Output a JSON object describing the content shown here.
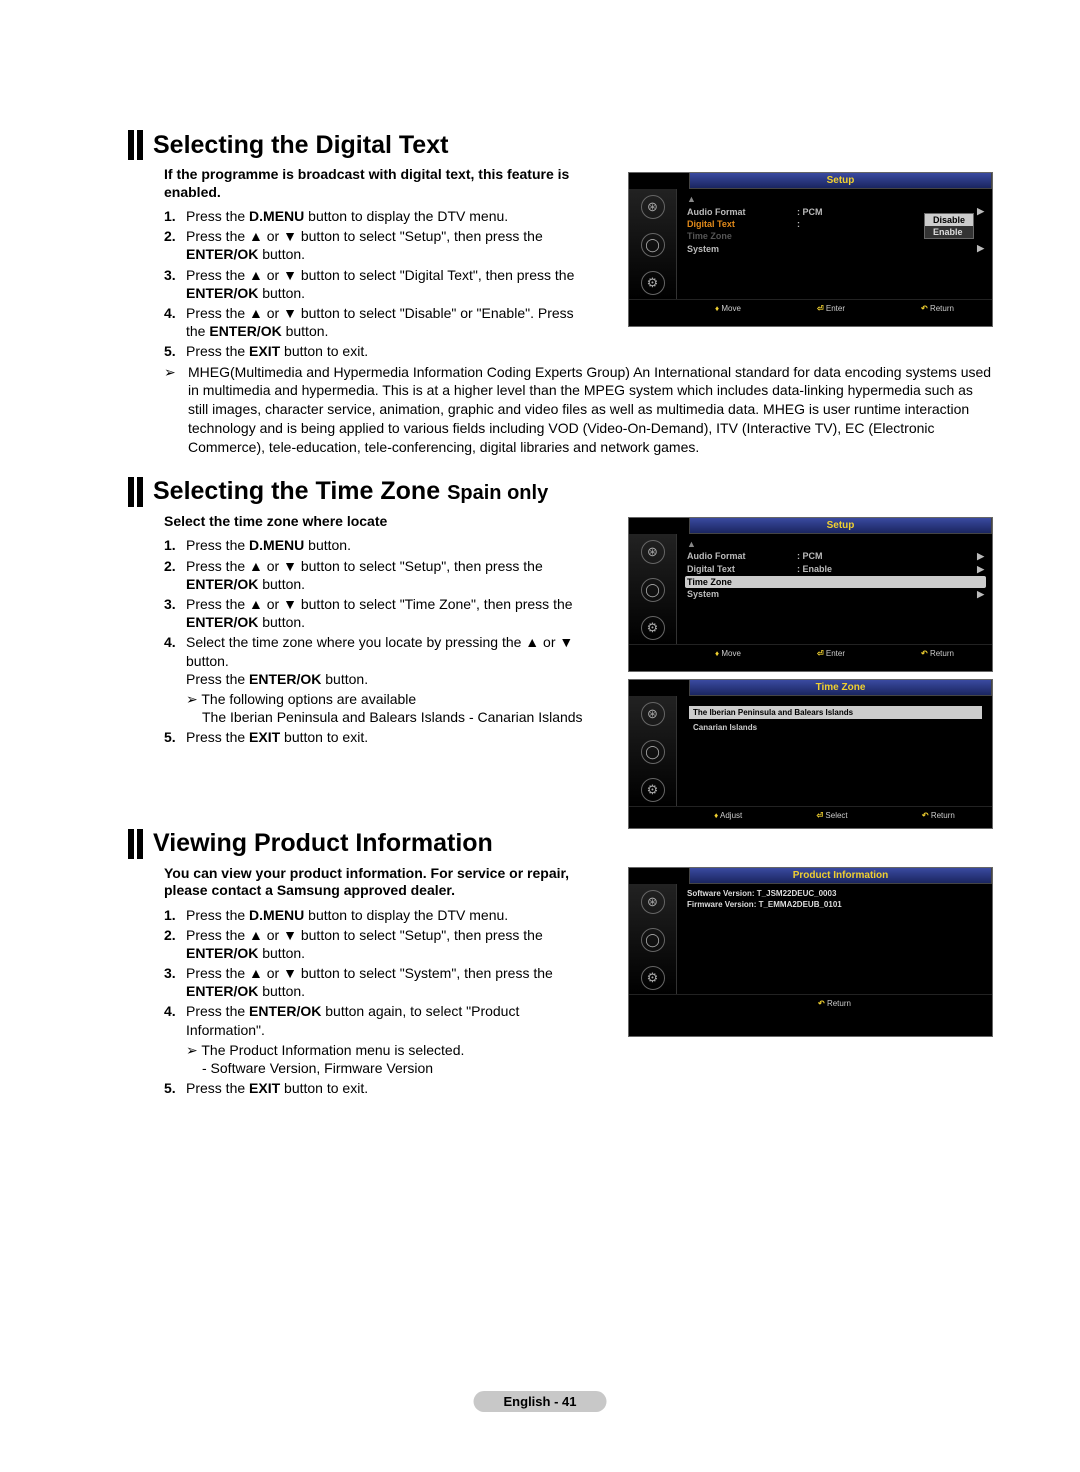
{
  "colors": {
    "text": "#000000",
    "osd_bg": "#000000",
    "osd_title_bg_top": "#3a4aa0",
    "osd_title_bg_bot": "#1a2560",
    "osd_title_text": "#f0d030",
    "highlight_bg": "#cccccc",
    "orange_text": "#e28a1a",
    "footer_bg": "#c8c8c8"
  },
  "section1": {
    "title": "Selecting the Digital Text",
    "intro": "If the programme is broadcast with digital text, this feature is enabled.",
    "steps": [
      "Press the <b>D.MENU</b> button to display the DTV menu.",
      "Press the ▲ or ▼ button to select \"Setup\", then press the <b>ENTER/OK</b> button.",
      "Press the ▲ or ▼ button to select \"Digital Text\", then press the <b>ENTER/OK</b> button.",
      "Press the ▲ or ▼ button to select \"Disable\" or \"Enable\". Press the <b>ENTER/OK</b> button.",
      "Press the <b>EXIT</b> button to exit."
    ],
    "note": "MHEG(Multimedia and Hypermedia Information Coding Experts Group) An International standard for data encoding systems used in multimedia and hypermedia. This is at a higher level than the MPEG system which includes data-linking hypermedia such as still images, character service, animation, graphic and video files as well as multimedia data. MHEG is user runtime interaction technology and is being applied to various fields including VOD (Video-On-Demand), ITV (Interactive TV), EC (Electronic Commerce), tele-education, tele-conferencing, digital libraries and network games.",
    "osd": {
      "title": "Setup",
      "rows": [
        {
          "label": "▲",
          "val": "",
          "type": "arrow"
        },
        {
          "label": "Audio Format",
          "val": ": PCM",
          "chev": "▶"
        },
        {
          "label": "Digital Text",
          "val": ":",
          "highlight": "orange"
        },
        {
          "label": "Time Zone",
          "val": "",
          "dim": true
        },
        {
          "label": "System",
          "val": "",
          "chev": "▶"
        }
      ],
      "popup": {
        "options": [
          "Disable",
          "Enable"
        ],
        "selected": 0
      },
      "footer": [
        "♦ Move",
        "⏎ Enter",
        "↶ Return"
      ]
    }
  },
  "section2": {
    "title": "Selecting the Time Zone",
    "subtitle": "Spain only",
    "intro": "Select the time zone where locate",
    "steps": [
      "Press the <b>D.MENU</b> button.",
      "Press the ▲ or ▼ button to select \"Setup\", then press the <b>ENTER/OK</b> button.",
      "Press the ▲ or ▼ button to select \"Time Zone\", then press the <b>ENTER/OK</b> button.",
      "Select the time zone where you locate by pressing the ▲ or ▼ button.<br>Press the <b>ENTER/OK</b> button.",
      "Press the <b>EXIT</b> button to exit."
    ],
    "sub_note_lead": "The following options are available",
    "sub_note_body": "The Iberian Peninsula and Balears Islands - Canarian Islands",
    "osd1": {
      "title": "Setup",
      "rows": [
        {
          "label": "▲",
          "val": "",
          "type": "arrow"
        },
        {
          "label": "Audio Format",
          "val": ": PCM",
          "chev": "▶"
        },
        {
          "label": "Digital Text",
          "val": ": Enable",
          "chev": "▶"
        },
        {
          "label": "Time Zone",
          "val": "",
          "highlight": "row"
        },
        {
          "label": "System",
          "val": "",
          "chev": "▶"
        }
      ],
      "footer": [
        "♦ Move",
        "⏎ Enter",
        "↶ Return"
      ]
    },
    "osd2": {
      "title": "Time Zone",
      "options": [
        "The Iberian Peninsula and Balears Islands",
        "Canarian Islands"
      ],
      "selected": 0,
      "footer": [
        "♦ Adjust",
        "⏎ Select",
        "↶ Return"
      ]
    }
  },
  "section3": {
    "title": "Viewing Product Information",
    "intro": "You can view your product information. For service or repair, please contact a Samsung approved dealer.",
    "steps": [
      "Press the <b>D.MENU</b> button to display the DTV menu.",
      "Press the ▲ or ▼ button to select \"Setup\", then press the <b>ENTER/OK</b> button.",
      "Press the ▲ or ▼ button to select \"System\", then press the <b>ENTER/OK</b> button.",
      "Press the <b>ENTER/OK</b> button again, to select \"Product Information\".",
      "Press the <b>EXIT</b> button to exit."
    ],
    "sub_note_lead": "The Product Information menu is selected.",
    "sub_note_body": "- Software Version, Firmware Version",
    "osd": {
      "title": "Product Information",
      "lines": [
        "Software Version: T_JSM22DEUC_0003",
        "Firmware Version: T_EMMA2DEUB_0101"
      ],
      "footer": [
        "↶ Return"
      ]
    }
  },
  "footer": "English - 41"
}
